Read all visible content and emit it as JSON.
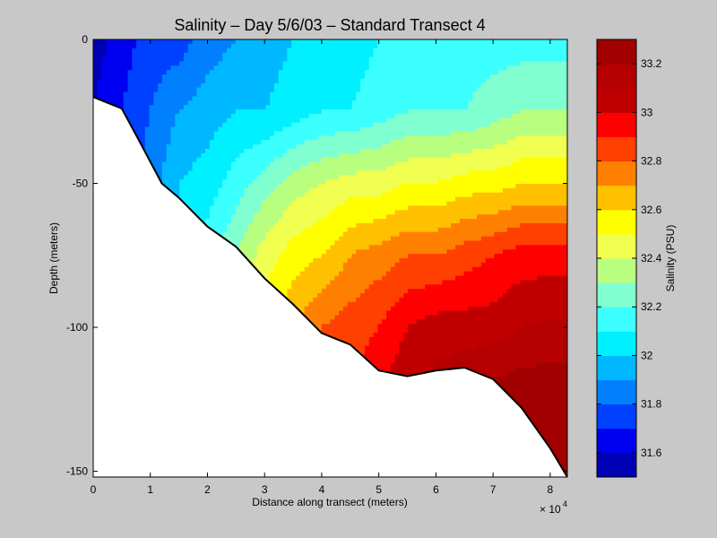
{
  "chart_data": {
    "type": "heatmap",
    "subtype": "filled-contour",
    "title": "Salinity – Day 5/6/03 – Standard Transect 4",
    "xlabel": "Distance along transect (meters)",
    "ylabel": "Depth (meters)",
    "x_multiplier_label": "× 10",
    "x_multiplier_exponent": "4",
    "xlim": [
      0,
      83000
    ],
    "ylim": [
      -152,
      0
    ],
    "x_ticks": [
      0,
      10000,
      20000,
      30000,
      40000,
      50000,
      60000,
      70000,
      80000
    ],
    "x_tick_labels": [
      "0",
      "1",
      "2",
      "3",
      "4",
      "5",
      "6",
      "7",
      "8"
    ],
    "y_ticks": [
      0,
      -50,
      -100,
      -150
    ],
    "y_tick_labels": [
      "0",
      "-50",
      "-100",
      "-150"
    ],
    "colorbar": {
      "label": "Salinity (PSU)",
      "range": [
        31.5,
        33.3
      ],
      "ticks": [
        31.6,
        31.8,
        32,
        32.2,
        32.4,
        32.6,
        32.8,
        33,
        33.2
      ],
      "tick_labels": [
        "31.6",
        "31.8",
        "32",
        "32.2",
        "32.4",
        "32.6",
        "32.8",
        "33",
        "33.2"
      ],
      "levels": [
        31.5,
        31.6,
        31.7,
        31.8,
        31.9,
        32.0,
        32.1,
        32.2,
        32.3,
        32.4,
        32.5,
        32.6,
        32.7,
        32.8,
        32.9,
        33.0,
        33.1,
        33.2,
        33.3
      ],
      "colors": [
        "#0000b4",
        "#0000f0",
        "#0040ff",
        "#0080ff",
        "#00b8ff",
        "#00f0ff",
        "#3cffff",
        "#80ffd0",
        "#b8ff80",
        "#f0ff50",
        "#ffff00",
        "#ffc000",
        "#ff8000",
        "#ff4000",
        "#ff0000",
        "#c00000",
        "#b40000",
        "#a00000"
      ]
    },
    "bottom_profile": {
      "x": [
        0,
        5000,
        8000,
        12000,
        15000,
        20000,
        25000,
        30000,
        35000,
        40000,
        45000,
        50000,
        55000,
        60000,
        65000,
        70000,
        75000,
        80000,
        83000
      ],
      "depth": [
        -20,
        -24,
        -35,
        -50,
        -55,
        -65,
        -72,
        -83,
        -92,
        -102,
        -106,
        -115,
        -117,
        -115,
        -114,
        -118,
        -128,
        -142,
        -152
      ]
    },
    "contour_columns": {
      "x": [
        0,
        5000,
        10000,
        15000,
        20000,
        25000,
        30000,
        35000,
        40000,
        45000,
        50000,
        55000,
        60000,
        65000,
        70000,
        75000,
        80000,
        83000
      ],
      "depths": [
        0,
        -25,
        -50,
        -75,
        -100,
        -125,
        -150
      ],
      "salinity": [
        [
          31.55,
          31.6,
          31.6,
          31.6,
          31.6,
          31.6,
          31.6
        ],
        [
          31.65,
          31.7,
          31.75,
          31.75,
          31.75,
          31.75,
          31.75
        ],
        [
          31.75,
          31.8,
          31.85,
          31.9,
          31.9,
          31.9,
          31.9
        ],
        [
          31.75,
          31.9,
          32.0,
          32.05,
          32.05,
          32.05,
          32.05
        ],
        [
          31.85,
          31.95,
          32.05,
          32.15,
          32.2,
          32.2,
          32.2
        ],
        [
          31.9,
          32.0,
          32.15,
          32.3,
          32.4,
          32.4,
          32.4
        ],
        [
          31.95,
          32.0,
          32.25,
          32.45,
          32.55,
          32.55,
          32.55
        ],
        [
          32.0,
          32.05,
          32.35,
          32.55,
          32.7,
          32.75,
          32.75
        ],
        [
          32.0,
          32.1,
          32.4,
          32.6,
          32.8,
          32.85,
          32.85
        ],
        [
          32.05,
          32.1,
          32.45,
          32.7,
          32.85,
          32.9,
          32.9
        ],
        [
          32.1,
          32.15,
          32.45,
          32.75,
          32.9,
          33.0,
          33.0
        ],
        [
          32.15,
          32.2,
          32.5,
          32.8,
          33.0,
          33.1,
          33.1
        ],
        [
          32.15,
          32.2,
          32.5,
          32.8,
          33.05,
          33.15,
          33.15
        ],
        [
          32.15,
          32.2,
          32.55,
          32.85,
          33.05,
          33.2,
          33.2
        ],
        [
          32.15,
          32.25,
          32.55,
          32.9,
          33.05,
          33.25,
          33.25
        ],
        [
          32.15,
          32.3,
          32.6,
          32.95,
          33.1,
          33.28,
          33.28
        ],
        [
          32.15,
          32.3,
          32.6,
          32.95,
          33.12,
          33.28,
          33.28
        ],
        [
          32.15,
          32.3,
          32.6,
          32.95,
          33.12,
          33.28,
          33.28
        ]
      ]
    },
    "bathymetry_fill_color": "#ffffff",
    "background_color": "#c8c8c8"
  }
}
